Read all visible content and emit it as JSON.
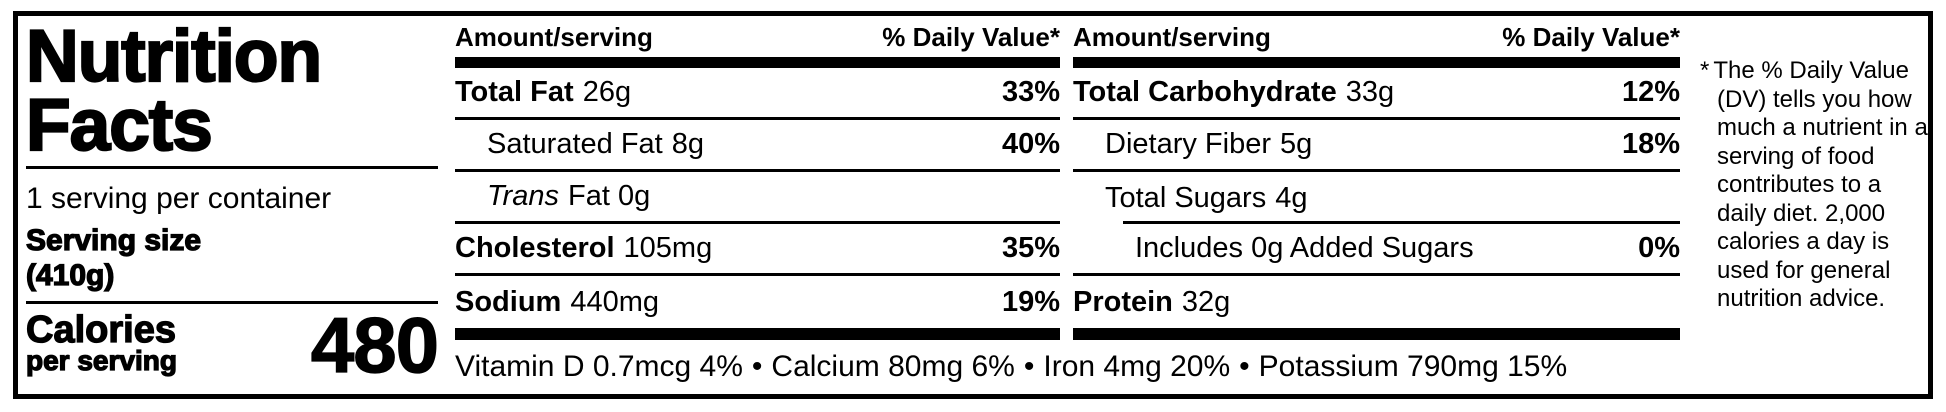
{
  "colors": {
    "ink": "#000000",
    "background": "#ffffff"
  },
  "panel": {
    "title_line1": "Nutrition",
    "title_line2": "Facts",
    "servings_per_container": "1 serving per container",
    "serving_size_label": "Serving size",
    "serving_size_value": "(410g)",
    "calories_label": "Calories",
    "calories_sublabel": "per serving",
    "calories_value": "480"
  },
  "columns": [
    {
      "header": {
        "amount": "Amount/serving",
        "daily_value": "% Daily Value*"
      },
      "rows": [
        {
          "name": "Total Fat",
          "amount": "26g",
          "dv": "33%"
        },
        {
          "name": "Saturated Fat",
          "amount": "8g",
          "dv": "40%"
        },
        {
          "name_italic": "Trans",
          "amount": "Fat 0g",
          "dv": ""
        },
        {
          "name": "Cholesterol",
          "amount": "105mg",
          "dv": "35%"
        },
        {
          "name": "Sodium",
          "amount": "440mg",
          "dv": "19%"
        }
      ]
    },
    {
      "header": {
        "amount": "Amount/serving",
        "daily_value": "% Daily Value*"
      },
      "rows": [
        {
          "name": "Total Carbohydrate",
          "amount": "33g",
          "dv": "12%"
        },
        {
          "name": "Dietary Fiber",
          "amount": "5g",
          "dv": "18%"
        },
        {
          "name": "Total Sugars",
          "amount": "4g",
          "dv": ""
        },
        {
          "name": "Includes 0g Added Sugars",
          "amount": "",
          "dv": "0%"
        },
        {
          "name": "Protein",
          "amount": "32g",
          "dv": ""
        }
      ]
    }
  ],
  "micronutrients": {
    "separator": "•",
    "items": [
      "Vitamin D 0.7mcg 4%",
      "Calcium 80mg 6%",
      "Iron 4mg 20%",
      "Potassium 790mg 15%"
    ]
  },
  "footnote": {
    "asterisk": "*",
    "text": "The % Daily Value (DV) tells you how much a nutrient in a serving of food contributes to a daily diet. 2,000 calories a day is used for general nutrition advice."
  }
}
